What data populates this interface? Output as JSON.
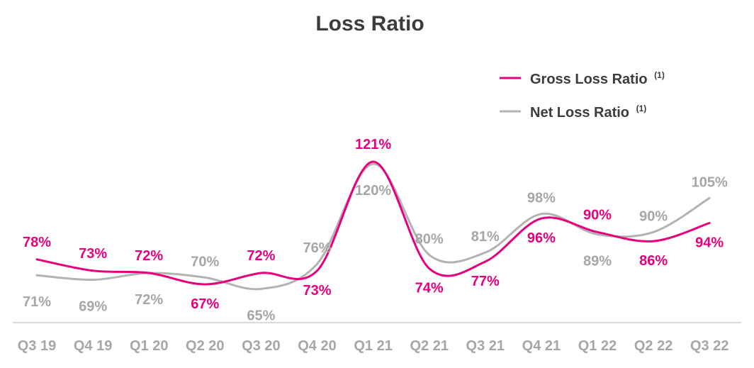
{
  "chart_data": {
    "type": "line",
    "title": "Loss Ratio",
    "xlabel": "",
    "ylabel": "",
    "categories": [
      "Q3 19",
      "Q4 19",
      "Q1 20",
      "Q2 20",
      "Q3 20",
      "Q4 20",
      "Q1 21",
      "Q2 21",
      "Q3 21",
      "Q4 21",
      "Q1 22",
      "Q2 22",
      "Q3 22"
    ],
    "series": [
      {
        "name": "Gross Loss Ratio",
        "superscript": "(1)",
        "color": "#e6007e",
        "values": [
          78,
          73,
          72,
          67,
          72,
          73,
          121,
          74,
          77,
          96,
          90,
          86,
          94
        ],
        "labels": [
          "78%",
          "73%",
          "72%",
          "67%",
          "72%",
          "73%",
          "121%",
          "74%",
          "77%",
          "96%",
          "90%",
          "86%",
          "94%"
        ]
      },
      {
        "name": "Net Loss Ratio",
        "superscript": "(1)",
        "color": "#b3b3b3",
        "values": [
          71,
          69,
          72,
          70,
          65,
          76,
          120,
          80,
          81,
          98,
          89,
          90,
          105
        ],
        "labels": [
          "71%",
          "69%",
          "72%",
          "70%",
          "65%",
          "76%",
          "120%",
          "80%",
          "81%",
          "98%",
          "89%",
          "90%",
          "105%"
        ]
      }
    ],
    "grid": false,
    "legend": "top-right"
  }
}
